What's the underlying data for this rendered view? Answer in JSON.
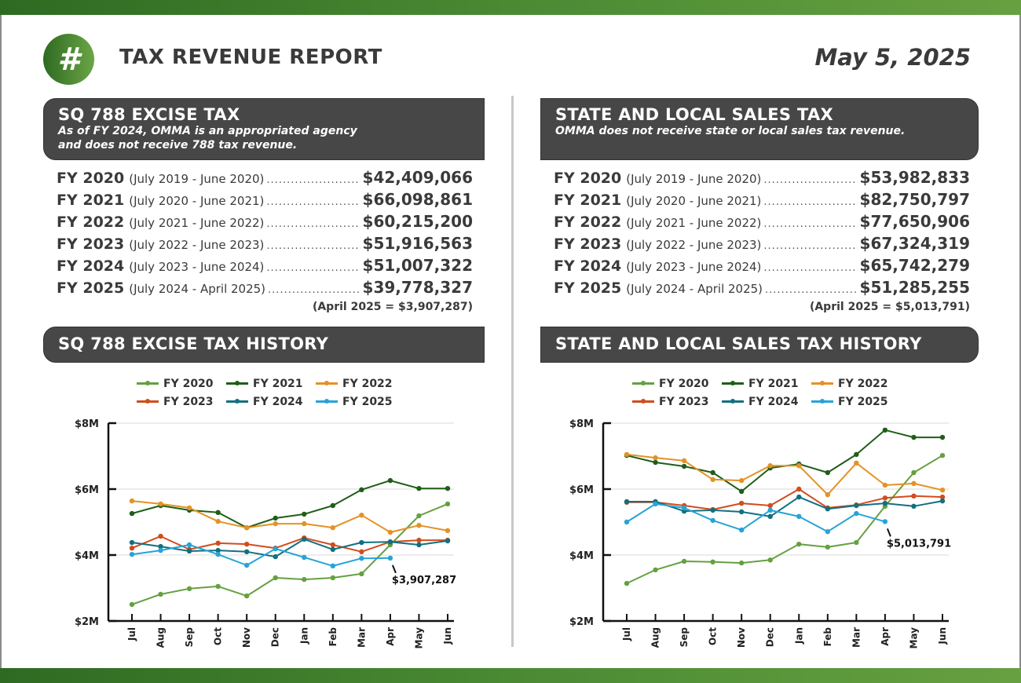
{
  "header": {
    "logo_glyph": "#",
    "title": "TAX REVENUE REPORT",
    "date": "May 5, 2025"
  },
  "colors": {
    "brand_green": "#3f7d2b",
    "header_box": "#474747",
    "FY 2020": "#66a040",
    "FY 2021": "#1f5e17",
    "FY 2022": "#e39226",
    "FY 2023": "#d14d1d",
    "FY 2024": "#12707f",
    "FY 2025": "#27a3d8"
  },
  "excise": {
    "title": "SQ 788 EXCISE TAX",
    "subtitle_line1": "As of FY 2024, OMMA is an appropriated agency",
    "subtitle_line2": "and does not receive 788 tax revenue.",
    "rows": [
      {
        "fy": "FY 2020",
        "range": "(July 2019 - June 2020)",
        "amount": "$42,409,066"
      },
      {
        "fy": "FY 2021",
        "range": "(July 2020 - June 2021)",
        "amount": "$66,098,861"
      },
      {
        "fy": "FY 2022",
        "range": "(July 2021 - June 2022)",
        "amount": "$60,215,200"
      },
      {
        "fy": "FY 2023",
        "range": "(July 2022 - June 2023)",
        "amount": "$51,916,563"
      },
      {
        "fy": "FY 2024",
        "range": "(July 2023 - June 2024)",
        "amount": "$51,007,322"
      },
      {
        "fy": "FY 2025",
        "range": "(July 2024 - April 2025)",
        "amount": "$39,778,327"
      }
    ],
    "note": "(April 2025 = $3,907,287)",
    "history_title": "SQ 788 EXCISE TAX HISTORY"
  },
  "sales": {
    "title": "STATE AND LOCAL SALES TAX",
    "subtitle_line1": "OMMA does not receive state or local sales tax revenue.",
    "rows": [
      {
        "fy": "FY 2020",
        "range": "(July 2019 - June 2020)",
        "amount": "$53,982,833"
      },
      {
        "fy": "FY 2021",
        "range": "(July 2020 - June 2021)",
        "amount": "$82,750,797"
      },
      {
        "fy": "FY 2022",
        "range": "(July 2021 - June 2022)",
        "amount": "$77,650,906"
      },
      {
        "fy": "FY 2023",
        "range": "(July 2022 - June 2023)",
        "amount": "$67,324,319"
      },
      {
        "fy": "FY 2024",
        "range": "(July 2023 - June 2024)",
        "amount": "$65,742,279"
      },
      {
        "fy": "FY 2025",
        "range": "(July 2024 - April 2025)",
        "amount": "$51,285,255"
      }
    ],
    "note": "(April 2025 = $5,013,791)",
    "history_title": "STATE AND LOCAL SALES TAX HISTORY"
  },
  "chart_data": [
    {
      "type": "line",
      "title": "SQ 788 EXCISE TAX HISTORY",
      "xlabel": "",
      "ylabel": "",
      "categories": [
        "Jul",
        "Aug",
        "Sep",
        "Oct",
        "Nov",
        "Dec",
        "Jan",
        "Feb",
        "Mar",
        "Apr",
        "May",
        "Jun"
      ],
      "ylim": [
        2,
        8
      ],
      "yunit": "millions USD",
      "yticks": [
        2,
        4,
        6,
        8
      ],
      "ytick_labels": [
        "$2M",
        "$4M",
        "$6M",
        "$8M"
      ],
      "grid": true,
      "legend_position": "top-center",
      "series": [
        {
          "name": "FY 2020",
          "values": [
            2.5,
            2.81,
            2.98,
            3.05,
            2.76,
            3.31,
            3.26,
            3.31,
            3.43,
            4.31,
            5.19,
            5.55
          ]
        },
        {
          "name": "FY 2021",
          "values": [
            5.26,
            5.5,
            5.36,
            5.29,
            4.83,
            5.12,
            5.24,
            5.5,
            5.98,
            6.26,
            6.02,
            6.02
          ]
        },
        {
          "name": "FY 2022",
          "values": [
            5.64,
            5.55,
            5.43,
            5.02,
            4.83,
            4.95,
            4.95,
            4.83,
            5.21,
            4.69,
            4.9,
            4.74
          ]
        },
        {
          "name": "FY 2023",
          "values": [
            4.21,
            4.57,
            4.17,
            4.36,
            4.33,
            4.21,
            4.52,
            4.31,
            4.1,
            4.4,
            4.45,
            4.45
          ]
        },
        {
          "name": "FY 2024",
          "values": [
            4.38,
            4.26,
            4.12,
            4.14,
            4.1,
            3.95,
            4.48,
            4.17,
            4.38,
            4.4,
            4.31,
            4.43
          ]
        },
        {
          "name": "FY 2025",
          "values": [
            4.02,
            4.14,
            4.31,
            4.02,
            3.69,
            4.19,
            3.93,
            3.67,
            3.9,
            3.907287
          ]
        }
      ],
      "annotation": {
        "series": "FY 2025",
        "category": "Apr",
        "text": "$3,907,287"
      }
    },
    {
      "type": "line",
      "title": "STATE AND LOCAL SALES TAX HISTORY",
      "xlabel": "",
      "ylabel": "",
      "categories": [
        "Jul",
        "Aug",
        "Sep",
        "Oct",
        "Nov",
        "Dec",
        "Jan",
        "Feb",
        "Mar",
        "Apr",
        "May",
        "Jun"
      ],
      "ylim": [
        2,
        8
      ],
      "yunit": "millions USD",
      "yticks": [
        2,
        4,
        6,
        8
      ],
      "ytick_labels": [
        "$2M",
        "$4M",
        "$6M",
        "$8M"
      ],
      "grid": true,
      "legend_position": "top-center",
      "series": [
        {
          "name": "FY 2020",
          "values": [
            3.14,
            3.55,
            3.81,
            3.79,
            3.76,
            3.85,
            4.33,
            4.24,
            4.38,
            5.48,
            6.5,
            7.02
          ]
        },
        {
          "name": "FY 2021",
          "values": [
            7.02,
            6.81,
            6.69,
            6.5,
            5.93,
            6.64,
            6.76,
            6.5,
            7.05,
            7.79,
            7.57,
            7.57
          ]
        },
        {
          "name": "FY 2022",
          "values": [
            7.05,
            6.95,
            6.86,
            6.29,
            6.26,
            6.71,
            6.71,
            5.83,
            6.79,
            6.12,
            6.17,
            5.97
          ]
        },
        {
          "name": "FY 2023",
          "values": [
            5.6,
            5.6,
            5.5,
            5.38,
            5.57,
            5.5,
            6.0,
            5.43,
            5.52,
            5.73,
            5.79,
            5.76
          ]
        },
        {
          "name": "FY 2024",
          "values": [
            5.62,
            5.62,
            5.33,
            5.36,
            5.31,
            5.17,
            5.76,
            5.4,
            5.5,
            5.57,
            5.48,
            5.64
          ]
        },
        {
          "name": "FY 2025",
          "values": [
            5.0,
            5.55,
            5.43,
            5.05,
            4.76,
            5.36,
            5.17,
            4.71,
            5.26,
            5.013791
          ]
        }
      ],
      "annotation": {
        "series": "FY 2025",
        "category": "Apr",
        "text": "$5,013,791"
      }
    }
  ]
}
